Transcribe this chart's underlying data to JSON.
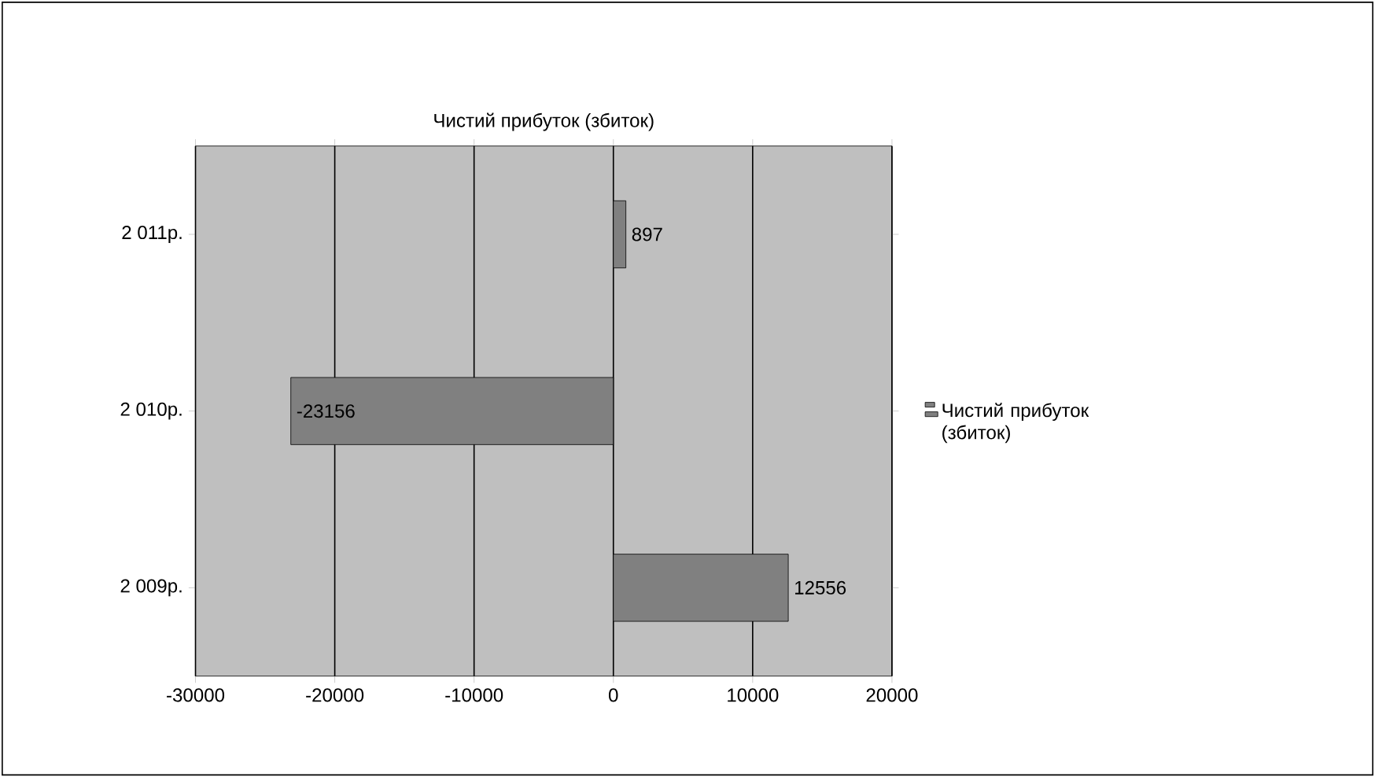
{
  "chart_data": {
    "type": "bar",
    "orientation": "horizontal",
    "title": "Чистий прибуток (збиток)",
    "categories": [
      "2 011р.",
      "2 010р.",
      "2 009р."
    ],
    "series": [
      {
        "name": "Чистий прибуток (збиток)",
        "color": "#808080",
        "values": [
          897,
          -23156,
          12556
        ]
      }
    ],
    "xlim": [
      -30000,
      20000
    ],
    "xticks": [
      -30000,
      -20000,
      -10000,
      0,
      10000,
      20000
    ],
    "grid": "x",
    "legend": "right",
    "data_labels": true
  }
}
